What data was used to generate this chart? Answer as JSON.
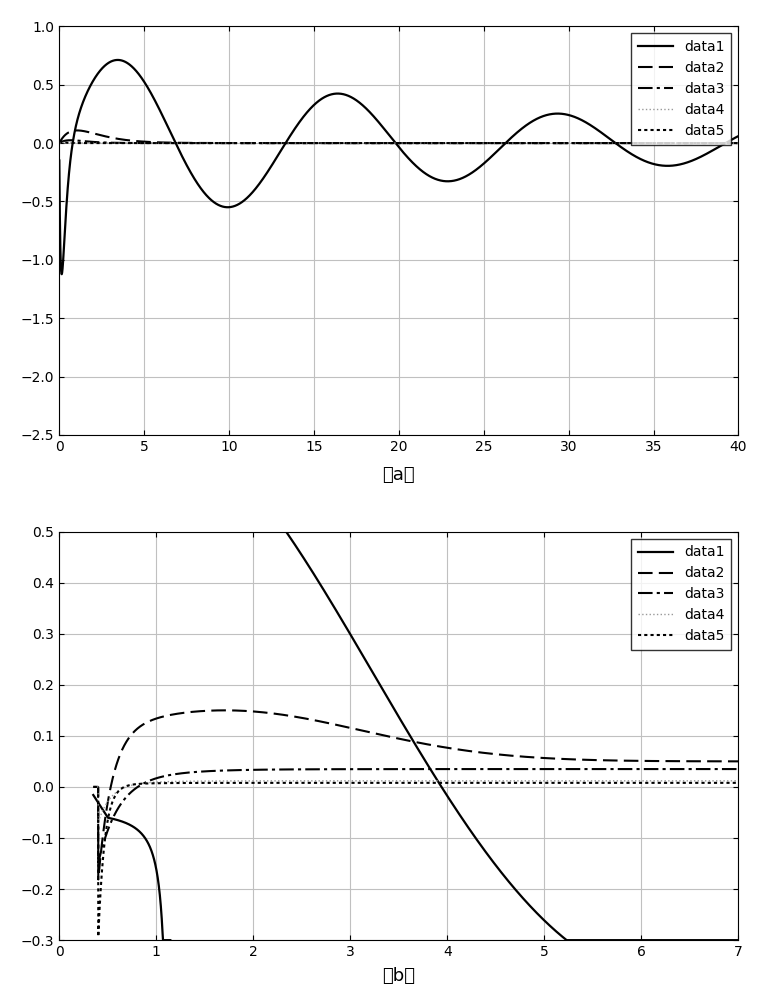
{
  "subplot_a": {
    "xlim": [
      0,
      40
    ],
    "ylim": [
      -2.5,
      1.0
    ],
    "xticks": [
      0,
      5,
      10,
      15,
      20,
      25,
      30,
      35,
      40
    ],
    "yticks": [
      -2.5,
      -2.0,
      -1.5,
      -1.0,
      -0.5,
      0,
      0.5,
      1.0
    ],
    "label": "（a）"
  },
  "subplot_b": {
    "xlim": [
      0,
      7
    ],
    "ylim": [
      -0.3,
      0.5
    ],
    "xticks": [
      0,
      1,
      2,
      3,
      4,
      5,
      6,
      7
    ],
    "yticks": [
      -0.3,
      -0.2,
      -0.1,
      0.0,
      0.1,
      0.2,
      0.3,
      0.4,
      0.5
    ],
    "label": "（b）"
  },
  "legend_entries": [
    "data1",
    "data2",
    "data3",
    "data4",
    "data5"
  ],
  "background_color": "#ffffff",
  "grid_color": "#c0c0c0"
}
